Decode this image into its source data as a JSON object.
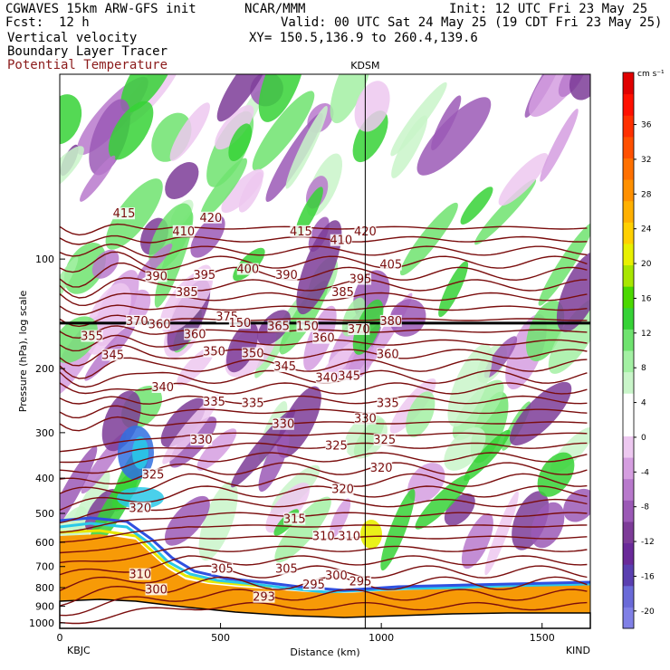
{
  "header": {
    "model": "CGWAVES 15km ARW-GFS init",
    "center": "NCAR/MMM",
    "init": "Init: 12 UTC Fri 23 May 25",
    "fcst_label": "Fcst:",
    "fcst_value": "12 h",
    "valid": "Valid: 00 UTC Sat 24 May 25 (19 CDT Fri 23 May 25)",
    "field1": "Vertical velocity",
    "field2": "Boundary Layer Tracer",
    "field3": "Potential Temperature",
    "xy": "XY= 150.5,136.9 to 260.4,139.6"
  },
  "colors": {
    "theta_contour": "#7a0d0d",
    "pbl_tracer": "#f79a07",
    "tropopause_line": "#000000",
    "terrain": "#ffffff"
  },
  "chart_data": {
    "type": "heatmap",
    "station_marker": "KDSM",
    "xlabel": "Distance (km)",
    "ylabel": "Pressure (hPa), log scale",
    "xlim": [
      0,
      1650
    ],
    "ylim": [
      1000,
      30
    ],
    "y_scale": "log",
    "x_ticks": [
      0,
      500,
      1000,
      1500
    ],
    "x_tick_labels": [
      "0",
      "500",
      "1000",
      "1500"
    ],
    "y_ticks": [
      100,
      200,
      300,
      400,
      500,
      600,
      700,
      800,
      900,
      1000
    ],
    "y_tick_labels": [
      "100",
      "200",
      "300",
      "400",
      "500",
      "600",
      "700",
      "800",
      "900",
      "1000"
    ],
    "start_label": "KBJC",
    "end_label": "KIND",
    "station_x_km": 950,
    "tropopause_pressure_hpa": 150,
    "colorbar": {
      "units": "cm s⁻¹",
      "ticks": [
        -20,
        -16,
        -12,
        -8,
        -4,
        0,
        4,
        8,
        12,
        16,
        20,
        24,
        28,
        32,
        36
      ],
      "tick_labels": [
        "-20",
        "-16",
        "-12",
        "-8",
        "-4",
        "0",
        "4",
        "8",
        "12",
        "16",
        "20",
        "24",
        "28",
        "32",
        "36"
      ],
      "color_steps": [
        "#8080e6",
        "#6a6ad8",
        "#5a3fb0",
        "#6a2a99",
        "#7d3c98",
        "#9b59b6",
        "#b879cc",
        "#d59ee0",
        "#edc8f0",
        "#ffffff",
        "#ffffff",
        "#c9f5c9",
        "#a3f0a3",
        "#6fe36f",
        "#36d236",
        "#4bd800",
        "#a8e600",
        "#e8f000",
        "#ffd000",
        "#ffb000",
        "#ff9000",
        "#ff7000",
        "#ff5000",
        "#ff3000",
        "#ff1000",
        "#e00000"
      ]
    },
    "theta_labels": [
      {
        "x": 200,
        "p": 76,
        "text": "415"
      },
      {
        "x": 385,
        "p": 85,
        "text": "410"
      },
      {
        "x": 470,
        "p": 78,
        "text": "420"
      },
      {
        "x": 300,
        "p": 113,
        "text": "390"
      },
      {
        "x": 395,
        "p": 125,
        "text": "385"
      },
      {
        "x": 450,
        "p": 112,
        "text": "395"
      },
      {
        "x": 585,
        "p": 108,
        "text": "400"
      },
      {
        "x": 240,
        "p": 150,
        "text": "370"
      },
      {
        "x": 310,
        "p": 153,
        "text": "360"
      },
      {
        "x": 520,
        "p": 146,
        "text": "375"
      },
      {
        "x": 560,
        "p": 152,
        "text": "150"
      },
      {
        "x": 420,
        "p": 163,
        "text": "360"
      },
      {
        "x": 100,
        "p": 165,
        "text": "355"
      },
      {
        "x": 165,
        "p": 186,
        "text": "345"
      },
      {
        "x": 480,
        "p": 182,
        "text": "350"
      },
      {
        "x": 600,
        "p": 184,
        "text": "350"
      },
      {
        "x": 320,
        "p": 228,
        "text": "340"
      },
      {
        "x": 480,
        "p": 250,
        "text": "335"
      },
      {
        "x": 440,
        "p": 318,
        "text": "330"
      },
      {
        "x": 290,
        "p": 396,
        "text": "325"
      },
      {
        "x": 250,
        "p": 490,
        "text": "320"
      },
      {
        "x": 250,
        "p": 745,
        "text": "310"
      },
      {
        "x": 300,
        "p": 820,
        "text": "300"
      },
      {
        "x": 505,
        "p": 720,
        "text": "305"
      },
      {
        "x": 635,
        "p": 860,
        "text": "293"
      },
      {
        "x": 750,
        "p": 85,
        "text": "415"
      },
      {
        "x": 875,
        "p": 90,
        "text": "410"
      },
      {
        "x": 950,
        "p": 85,
        "text": "420"
      },
      {
        "x": 705,
        "p": 112,
        "text": "390"
      },
      {
        "x": 880,
        "p": 125,
        "text": "385"
      },
      {
        "x": 935,
        "p": 115,
        "text": "395"
      },
      {
        "x": 1030,
        "p": 105,
        "text": "405"
      },
      {
        "x": 680,
        "p": 155,
        "text": "365"
      },
      {
        "x": 770,
        "p": 155,
        "text": "150"
      },
      {
        "x": 820,
        "p": 167,
        "text": "360"
      },
      {
        "x": 930,
        "p": 158,
        "text": "370"
      },
      {
        "x": 1030,
        "p": 150,
        "text": "380"
      },
      {
        "x": 1020,
        "p": 185,
        "text": "360"
      },
      {
        "x": 700,
        "p": 200,
        "text": "345"
      },
      {
        "x": 830,
        "p": 215,
        "text": "340"
      },
      {
        "x": 900,
        "p": 212,
        "text": "345"
      },
      {
        "x": 600,
        "p": 252,
        "text": "335"
      },
      {
        "x": 1020,
        "p": 252,
        "text": "335"
      },
      {
        "x": 695,
        "p": 288,
        "text": "330"
      },
      {
        "x": 950,
        "p": 278,
        "text": "330"
      },
      {
        "x": 860,
        "p": 330,
        "text": "325"
      },
      {
        "x": 1010,
        "p": 318,
        "text": "325"
      },
      {
        "x": 1000,
        "p": 380,
        "text": "320"
      },
      {
        "x": 880,
        "p": 435,
        "text": "320"
      },
      {
        "x": 730,
        "p": 525,
        "text": "315"
      },
      {
        "x": 820,
        "p": 585,
        "text": "310"
      },
      {
        "x": 900,
        "p": 585,
        "text": "310"
      },
      {
        "x": 705,
        "p": 720,
        "text": "305"
      },
      {
        "x": 860,
        "p": 750,
        "text": "300"
      },
      {
        "x": 790,
        "p": 795,
        "text": "295"
      },
      {
        "x": 935,
        "p": 780,
        "text": "295"
      }
    ]
  }
}
